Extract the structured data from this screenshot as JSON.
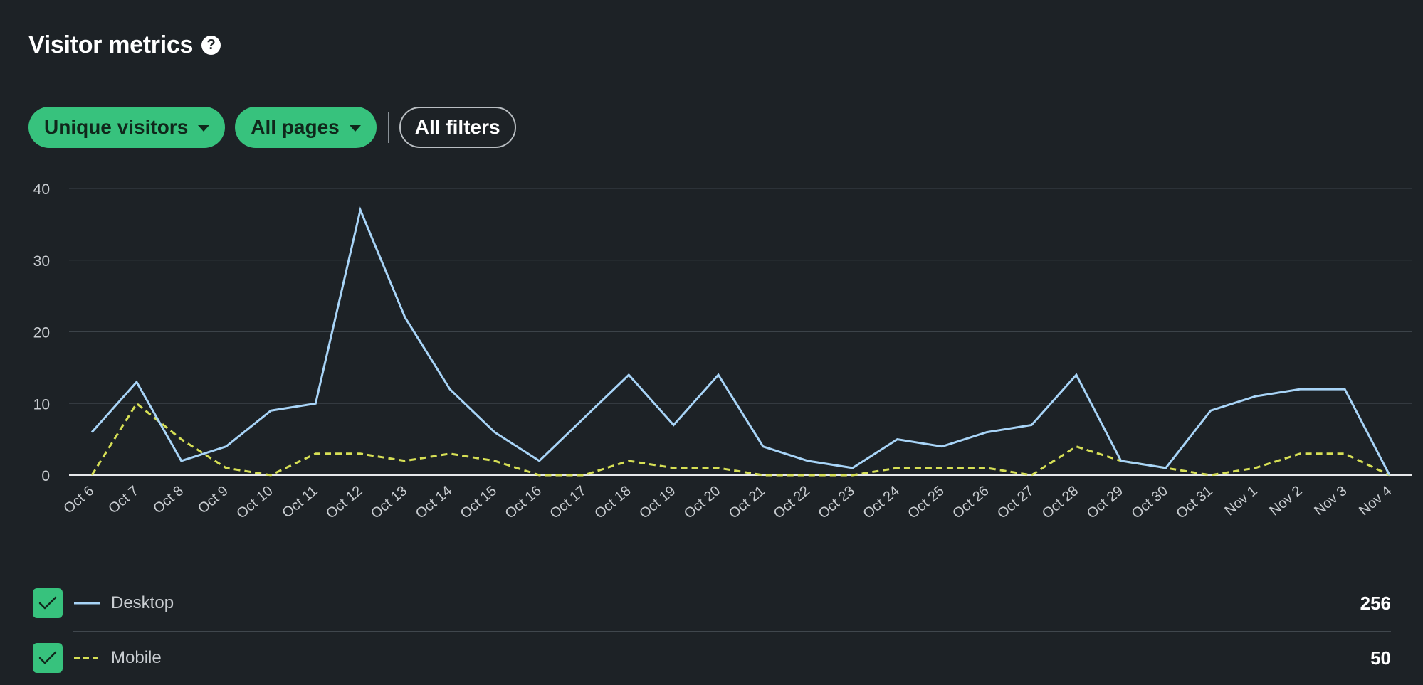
{
  "header": {
    "title": "Visitor metrics",
    "help_icon": "?"
  },
  "filters": {
    "metric_label": "Unique visitors",
    "pages_label": "All pages",
    "all_filters_label": "All filters"
  },
  "colors": {
    "background": "#1d2226",
    "accent": "#37c27d",
    "desktop": "#a8d4f7",
    "mobile": "#d6df55",
    "grid": "#3c4349"
  },
  "chart_data": {
    "type": "line",
    "title": "",
    "xlabel": "",
    "ylabel": "",
    "ylim": [
      0,
      40
    ],
    "yticks": [
      0,
      10,
      20,
      30,
      40
    ],
    "grid": true,
    "categories": [
      "Oct 6",
      "Oct 7",
      "Oct 8",
      "Oct 9",
      "Oct 10",
      "Oct 11",
      "Oct 12",
      "Oct 13",
      "Oct 14",
      "Oct 15",
      "Oct 16",
      "Oct 17",
      "Oct 18",
      "Oct 19",
      "Oct 20",
      "Oct 21",
      "Oct 22",
      "Oct 23",
      "Oct 24",
      "Oct 25",
      "Oct 26",
      "Oct 27",
      "Oct 28",
      "Oct 29",
      "Oct 30",
      "Oct 31",
      "Nov 1",
      "Nov 2",
      "Nov 3",
      "Nov 4"
    ],
    "series": [
      {
        "name": "Desktop",
        "style": "solid",
        "values": [
          6,
          13,
          2,
          4,
          9,
          10,
          37,
          22,
          12,
          6,
          2,
          8,
          14,
          7,
          14,
          4,
          2,
          1,
          5,
          4,
          6,
          7,
          14,
          2,
          1,
          9,
          11,
          12,
          12,
          0
        ]
      },
      {
        "name": "Mobile",
        "style": "dashed",
        "values": [
          0,
          10,
          5,
          1,
          0,
          3,
          3,
          2,
          3,
          2,
          0,
          0,
          2,
          1,
          1,
          0,
          0,
          0,
          1,
          1,
          1,
          0,
          4,
          2,
          1,
          0,
          1,
          3,
          3,
          0
        ]
      }
    ]
  },
  "legend": {
    "items": [
      {
        "label": "Desktop",
        "total": "256",
        "checked": true
      },
      {
        "label": "Mobile",
        "total": "50",
        "checked": true
      }
    ]
  }
}
